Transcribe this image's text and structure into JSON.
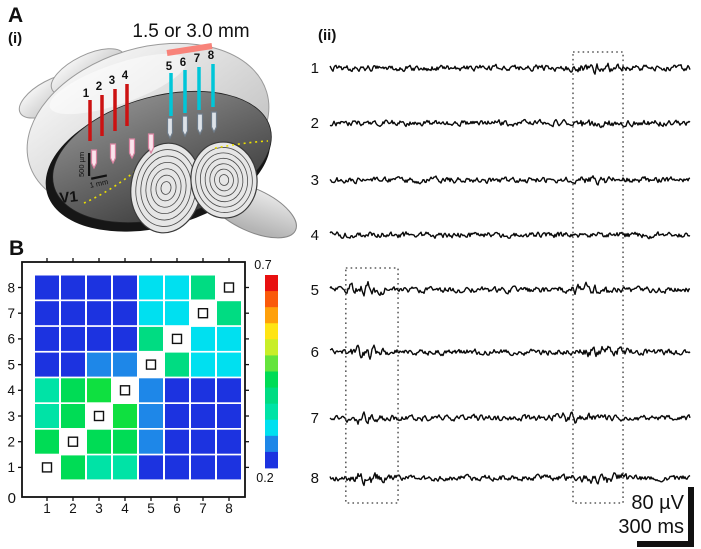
{
  "figure": {
    "panel_a_label": "A",
    "panel_a_i_label": "(i)",
    "panel_a_ii_label": "(ii)",
    "panel_b_label": "B",
    "distance_annotation": "1.5 or 3.0 mm",
    "v1_label": "V1",
    "depth_scale_label": "500 µm",
    "width_scale_label": "1 mm",
    "red_electrode_numbers": [
      "1",
      "2",
      "3",
      "4"
    ],
    "cyan_electrode_numbers": [
      "5",
      "6",
      "7",
      "8"
    ],
    "colors": {
      "annotation_text": "#f2483c",
      "annotation_bar": "#f8837a",
      "red_electrode": "#cc1212",
      "cyan_electrode": "#00c6d8",
      "v1_label": "#ece000",
      "trace": "#0a0a0a"
    }
  },
  "chart_data": [
    {
      "id": "electrode-correlation-matrix",
      "type": "heatmap",
      "panel": "B",
      "x_categories": [
        "1",
        "2",
        "3",
        "4",
        "5",
        "6",
        "7",
        "8"
      ],
      "y_categories": [
        "1",
        "2",
        "3",
        "4",
        "5",
        "6",
        "7",
        "8"
      ],
      "y_axis_origin_label": "0",
      "diagonal_marker": "small open square (self pair)",
      "values_rows_top_to_bottom": [
        [
          0.25,
          0.25,
          0.25,
          0.25,
          0.38,
          0.38,
          0.44,
          null
        ],
        [
          0.25,
          0.25,
          0.25,
          0.25,
          0.38,
          0.38,
          null,
          0.44
        ],
        [
          0.25,
          0.25,
          0.25,
          0.25,
          0.44,
          null,
          0.38,
          0.38
        ],
        [
          0.25,
          0.25,
          0.31,
          0.31,
          null,
          0.44,
          0.38,
          0.38
        ],
        [
          0.42,
          0.46,
          0.48,
          null,
          0.31,
          0.25,
          0.25,
          0.25
        ],
        [
          0.42,
          0.46,
          null,
          0.48,
          0.31,
          0.25,
          0.25,
          0.25
        ],
        [
          0.46,
          null,
          0.46,
          0.46,
          0.31,
          0.25,
          0.25,
          0.25
        ],
        [
          null,
          0.46,
          0.42,
          0.42,
          0.25,
          0.25,
          0.25,
          0.25
        ]
      ],
      "cell_colors_rows_top_to_bottom": [
        [
          "B",
          "B",
          "B",
          "B",
          "C",
          "C",
          "SG",
          "D"
        ],
        [
          "B",
          "B",
          "B",
          "B",
          "C",
          "C",
          "D",
          "SG"
        ],
        [
          "B",
          "B",
          "B",
          "B",
          "SG",
          "D",
          "C",
          "C"
        ],
        [
          "B",
          "B",
          "LB",
          "LB",
          "D",
          "SG",
          "C",
          "C"
        ],
        [
          "GC",
          "G",
          "BG",
          "D",
          "LB",
          "B",
          "B",
          "B"
        ],
        [
          "GC",
          "G",
          "D",
          "BG",
          "LB",
          "B",
          "B",
          "B"
        ],
        [
          "G",
          "D",
          "G",
          "G",
          "LB",
          "B",
          "B",
          "B"
        ],
        [
          "D",
          "G",
          "GC",
          "GC",
          "B",
          "B",
          "B",
          "B"
        ]
      ],
      "palette": {
        "B": "#1c33e0",
        "LB": "#1e87e8",
        "C": "#00e0f0",
        "GC": "#00e3a6",
        "SG": "#00dc82",
        "G": "#00dc55",
        "BG": "#0fe040"
      },
      "colorbar": {
        "min": 0.2,
        "max": 0.7,
        "min_label": "0.2",
        "max_label": "0.7",
        "palette_top_to_bottom": [
          "#e81010",
          "#fa5a0a",
          "#ffa00a",
          "#ffe414",
          "#c8ee28",
          "#64e43c",
          "#00dc55",
          "#00dc82",
          "#00e3a6",
          "#00e0f0",
          "#1e87e8",
          "#1c33e0"
        ]
      },
      "grid": false,
      "legend_position": "right-colorbar"
    },
    {
      "id": "lfp-traces",
      "type": "line",
      "panel": "A(ii)",
      "channels": [
        {
          "label": "1",
          "bursts": [
            [
              0.66,
              0.82,
              2.0
            ]
          ]
        },
        {
          "label": "2",
          "bursts": [
            [
              0.66,
              0.8,
              1.6
            ]
          ]
        },
        {
          "label": "3",
          "bursts": [
            [
              0.66,
              0.8,
              1.4
            ]
          ]
        },
        {
          "label": "4",
          "bursts": []
        },
        {
          "label": "5",
          "bursts": [
            [
              0.02,
              0.17,
              2.2
            ],
            [
              0.62,
              0.8,
              2.0
            ]
          ]
        },
        {
          "label": "6",
          "bursts": [
            [
              0.03,
              0.16,
              1.9
            ],
            [
              0.68,
              0.84,
              1.9
            ]
          ]
        },
        {
          "label": "7",
          "bursts": [
            [
              0.02,
              0.15,
              1.9
            ],
            [
              0.6,
              0.78,
              1.8
            ]
          ]
        },
        {
          "label": "8",
          "bursts": [
            [
              0.03,
              0.17,
              1.9
            ],
            [
              0.68,
              0.85,
              1.8
            ]
          ]
        }
      ],
      "highlight_windows": [
        {
          "channels": [
            5,
            8
          ],
          "window": [
            0.044,
            0.189
          ]
        },
        {
          "channels": [
            1,
            8
          ],
          "window": [
            0.675,
            0.814
          ]
        }
      ],
      "scalebar": {
        "voltage": "80 µV",
        "time": "300 ms"
      }
    }
  ]
}
